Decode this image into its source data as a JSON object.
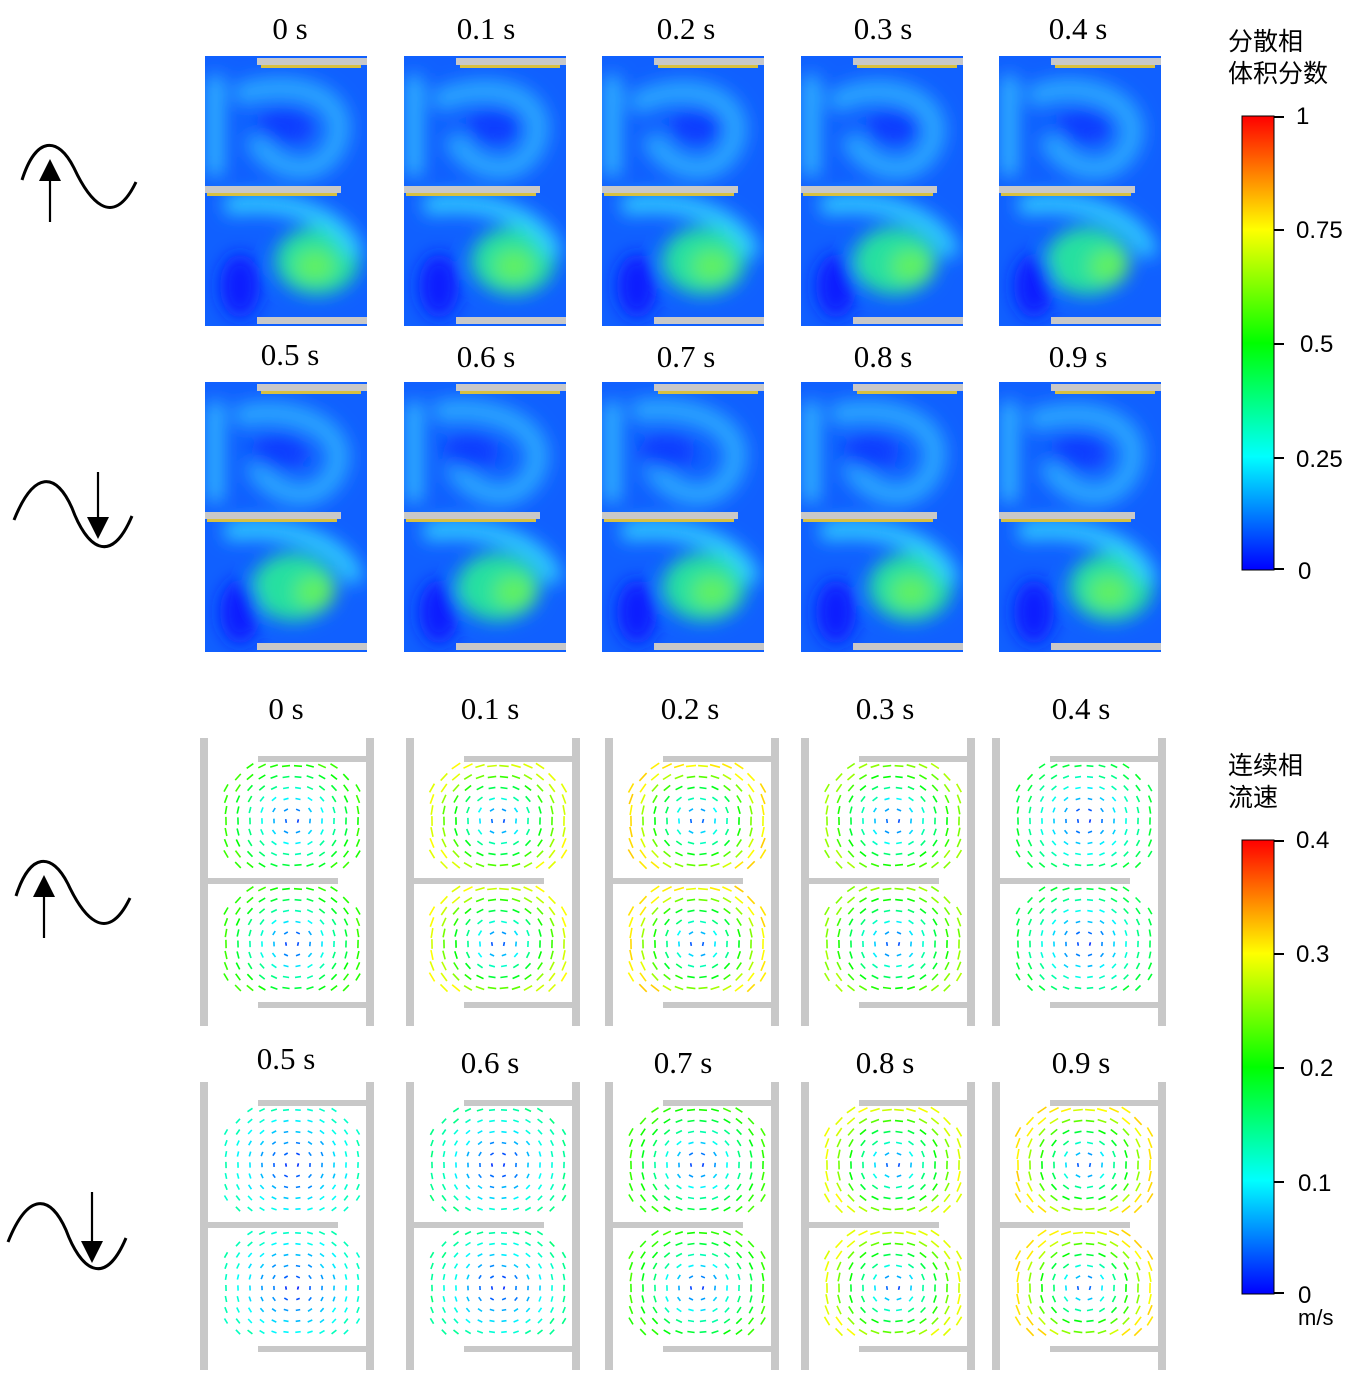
{
  "volume_fraction_section": {
    "legend_title_line1": "分散相",
    "legend_title_line2": "体积分数",
    "ticks": [
      "1",
      "0.75",
      "0.5",
      "0.25",
      "0"
    ],
    "colormap": [
      "#ff0000",
      "#ffff00",
      "#00ff00",
      "#00ffff",
      "#0000ff"
    ],
    "row1_times": [
      "0 s",
      "0.1 s",
      "0.2 s",
      "0.3 s",
      "0.4 s"
    ],
    "row2_times": [
      "0.5 s",
      "0.6 s",
      "0.7 s",
      "0.8 s",
      "0.9 s"
    ],
    "row1_motion": "upward",
    "row2_motion": "downward"
  },
  "velocity_section": {
    "legend_title_line1": "连续相",
    "legend_title_line2": "流速",
    "ticks": [
      "0.4",
      "0.3",
      "0.2",
      "0.1",
      "0"
    ],
    "unit": "m/s",
    "colormap": [
      "#ff0000",
      "#ffff00",
      "#00ff00",
      "#00ffff",
      "#0000ff"
    ],
    "row1_times": [
      "0 s",
      "0.1 s",
      "0.2 s",
      "0.3 s",
      "0.4 s"
    ],
    "row2_times": [
      "0.5 s",
      "0.6 s",
      "0.7 s",
      "0.8 s",
      "0.9 s"
    ],
    "row1_motion": "upward",
    "row2_motion": "downward"
  },
  "icons": {
    "up": "sine-wave-up-arrow-icon",
    "down": "sine-wave-down-arrow-icon"
  }
}
